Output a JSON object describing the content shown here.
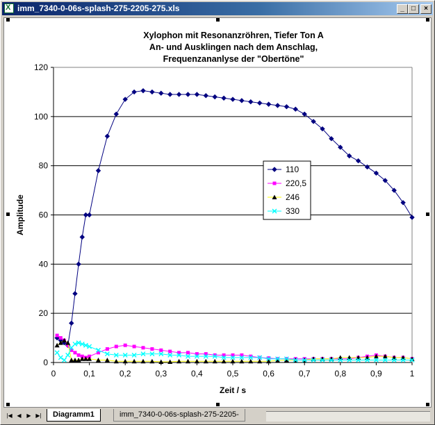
{
  "window": {
    "title": "imm_7340-0-06s-splash-275-2205-275.xls",
    "buttons": {
      "minimize": "_",
      "maximize": "□",
      "close": "×"
    }
  },
  "sheet_tabs": {
    "active": "Diagramm1",
    "inactive": "imm_7340-0-06s-splash-275-2205-",
    "nav": [
      "|◀",
      "◀",
      "▶",
      "▶|"
    ]
  },
  "chart": {
    "title_lines": [
      "Xylophon mit Resonanzröhren, Tiefer Ton A",
      "An- und Ausklingen nach dem Anschlag,",
      "Frequenzananlyse der \"Obertöne\""
    ],
    "xlabel": "Zeit / s",
    "ylabel": "Amplitude"
  },
  "chart_data": {
    "type": "line",
    "title": "Xylophon mit Resonanzröhren, Tiefer Ton A An- und Ausklingen nach dem Anschlag, Frequenzananlyse der \"Obertöne\"",
    "xlabel": "Zeit / s",
    "ylabel": "Amplitude",
    "xlim": [
      0,
      1
    ],
    "ylim": [
      0,
      120
    ],
    "xticks": [
      "0",
      "0,1",
      "0,2",
      "0,3",
      "0,4",
      "0,5",
      "0,6",
      "0,7",
      "0,8",
      "0,9",
      "1"
    ],
    "yticks": [
      "0",
      "20",
      "40",
      "60",
      "80",
      "100",
      "120"
    ],
    "grid": "horizontal major",
    "legend_position": "right-center",
    "series": [
      {
        "name": "110",
        "color": "#000080",
        "marker": "diamond",
        "x": [
          0.01,
          0.02,
          0.03,
          0.04,
          0.05,
          0.06,
          0.07,
          0.08,
          0.09,
          0.1,
          0.125,
          0.15,
          0.175,
          0.2,
          0.225,
          0.25,
          0.275,
          0.3,
          0.325,
          0.35,
          0.375,
          0.4,
          0.425,
          0.45,
          0.475,
          0.5,
          0.525,
          0.55,
          0.575,
          0.6,
          0.625,
          0.65,
          0.675,
          0.7,
          0.725,
          0.75,
          0.775,
          0.8,
          0.825,
          0.85,
          0.875,
          0.9,
          0.925,
          0.95,
          0.975,
          1.0
        ],
        "values": [
          10,
          9,
          8,
          7,
          16,
          28,
          40,
          51,
          60,
          60,
          78,
          92,
          101,
          107,
          110,
          110.5,
          110,
          109.5,
          109,
          109,
          109,
          109,
          108.5,
          108,
          107.5,
          107,
          106.5,
          106,
          105.5,
          105,
          104.5,
          104,
          103,
          101,
          98,
          95,
          91,
          87.5,
          84,
          82,
          79.5,
          77,
          74,
          70,
          65,
          59
        ]
      },
      {
        "name": "220,5",
        "color": "#ff00ff",
        "marker": "square",
        "x": [
          0.01,
          0.02,
          0.03,
          0.04,
          0.05,
          0.06,
          0.07,
          0.08,
          0.09,
          0.1,
          0.125,
          0.15,
          0.175,
          0.2,
          0.225,
          0.25,
          0.275,
          0.3,
          0.325,
          0.35,
          0.375,
          0.4,
          0.425,
          0.45,
          0.475,
          0.5,
          0.525,
          0.55,
          0.575,
          0.6,
          0.625,
          0.65,
          0.675,
          0.7,
          0.725,
          0.75,
          0.775,
          0.8,
          0.825,
          0.85,
          0.875,
          0.9,
          0.925,
          0.95,
          0.975,
          1.0
        ],
        "values": [
          11,
          10,
          9,
          7,
          5,
          4,
          3,
          2.5,
          2,
          2.5,
          4,
          5.5,
          6.5,
          7,
          6.5,
          6,
          5.5,
          5,
          4.5,
          4,
          4,
          3.5,
          3.5,
          3,
          3,
          3,
          3,
          2.5,
          2,
          1.8,
          1.5,
          1.5,
          1.5,
          1.5,
          1.5,
          1.5,
          1.5,
          1.5,
          1.5,
          2,
          2.5,
          3,
          2.5,
          2,
          2,
          1.5
        ]
      },
      {
        "name": "246",
        "color": "#ffff00",
        "marker": "triangle",
        "x": [
          0.01,
          0.02,
          0.03,
          0.04,
          0.05,
          0.06,
          0.07,
          0.08,
          0.09,
          0.1,
          0.125,
          0.15,
          0.175,
          0.2,
          0.225,
          0.25,
          0.275,
          0.3,
          0.325,
          0.35,
          0.375,
          0.4,
          0.425,
          0.45,
          0.475,
          0.5,
          0.525,
          0.55,
          0.575,
          0.6,
          0.625,
          0.65,
          0.675,
          0.7,
          0.725,
          0.75,
          0.775,
          0.8,
          0.825,
          0.85,
          0.875,
          0.9,
          0.925,
          0.95,
          0.975,
          1.0
        ],
        "values": [
          7,
          8,
          9,
          8,
          1,
          1,
          1,
          1.5,
          1.5,
          1.5,
          1,
          1,
          0.5,
          0.5,
          0.5,
          0.5,
          0.5,
          0.3,
          0.3,
          0.5,
          0.5,
          0.5,
          0.5,
          0.5,
          0.5,
          0.5,
          0.5,
          0.5,
          0.5,
          0.5,
          0.8,
          1,
          1,
          1,
          1.5,
          1.5,
          1.5,
          2,
          2,
          2,
          2,
          2.5,
          2.5,
          2,
          2,
          1.5
        ]
      },
      {
        "name": "330",
        "color": "#00ffff",
        "marker": "x",
        "x": [
          0.01,
          0.02,
          0.03,
          0.04,
          0.05,
          0.06,
          0.07,
          0.08,
          0.09,
          0.1,
          0.125,
          0.15,
          0.175,
          0.2,
          0.225,
          0.25,
          0.275,
          0.3,
          0.325,
          0.35,
          0.375,
          0.4,
          0.425,
          0.45,
          0.475,
          0.5,
          0.525,
          0.55,
          0.575,
          0.6,
          0.625,
          0.65,
          0.675,
          0.7,
          0.725,
          0.75,
          0.775,
          0.8,
          0.825,
          0.85,
          0.875,
          0.9,
          0.925,
          0.95,
          0.975,
          1.0
        ],
        "values": [
          4,
          2,
          1,
          3,
          6,
          7.5,
          8,
          7.5,
          7,
          6.5,
          5,
          3.5,
          3,
          3,
          3,
          3.5,
          3.5,
          3.5,
          3,
          3,
          2.5,
          2.5,
          2.5,
          2.5,
          2,
          2,
          2,
          2,
          2,
          1.5,
          1.5,
          1.5,
          1,
          1,
          1,
          1,
          1,
          1,
          1,
          1,
          1,
          1,
          1,
          1,
          1,
          1
        ]
      }
    ]
  }
}
